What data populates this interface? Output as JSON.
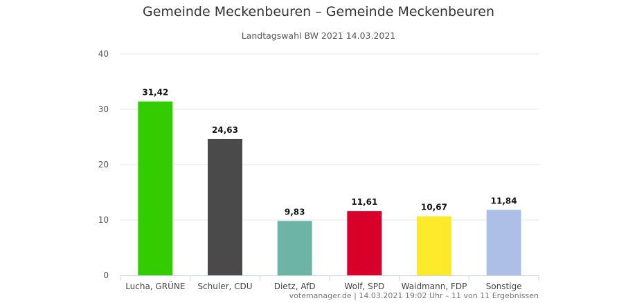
{
  "chart_data": {
    "type": "bar",
    "title": "Gemeinde Meckenbeuren – Gemeinde Meckenbeuren",
    "subtitle": "Landtagswahl BW 2021 14.03.2021",
    "categories": [
      "Lucha, GRÜNE",
      "Schuler, CDU",
      "Dietz, AfD",
      "Wolf, SPD",
      "Waidmann, FDP",
      "Sonstige"
    ],
    "values": [
      31.42,
      24.63,
      9.83,
      11.61,
      10.67,
      11.84
    ],
    "data_labels": [
      "31,42",
      "24,63",
      "9,83",
      "11,61",
      "10,67",
      "11,84"
    ],
    "colors": [
      "#33cc00",
      "#4a4a4a",
      "#6db3a6",
      "#d8002a",
      "#fcea2b",
      "#adbfe6"
    ],
    "ylim": [
      0,
      40
    ],
    "yticks": [
      0,
      10,
      20,
      30,
      40
    ],
    "grid": true,
    "legend": "none",
    "credits": "votemanager.de | 14.03.2021 19:02 Uhr – 11 von 11 Ergebnissen"
  }
}
